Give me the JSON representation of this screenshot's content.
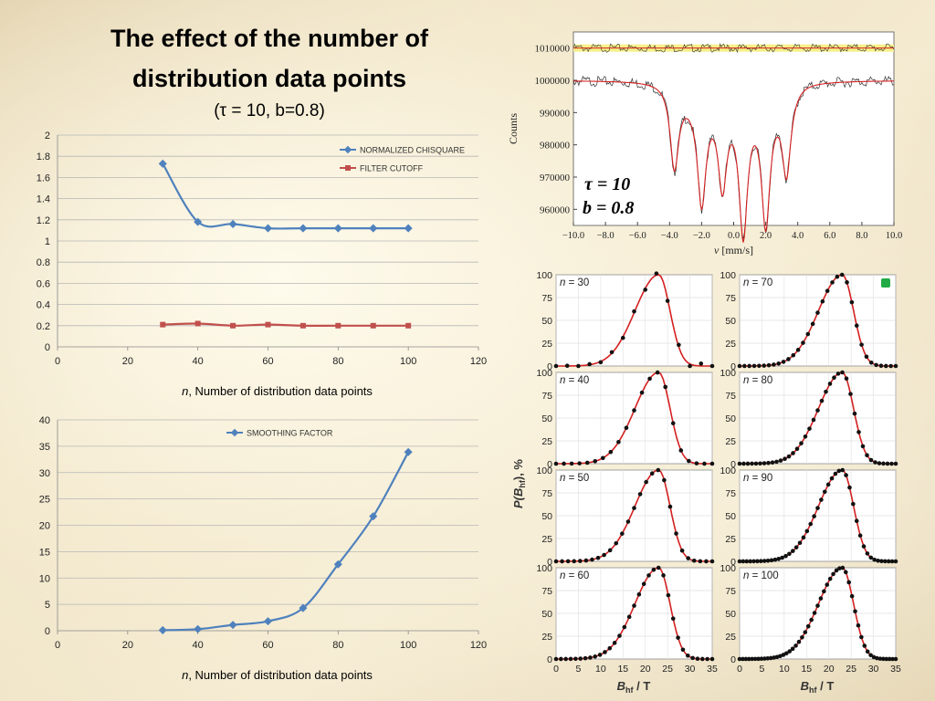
{
  "title_line1": "The effect of the number of",
  "title_line2": "distribution data points",
  "params": "(τ = 10, b=0.8)",
  "chart_data": [
    {
      "type": "line",
      "series": [
        {
          "name": "NORMALIZED CHISQUARE",
          "x": [
            30,
            40,
            50,
            60,
            70,
            80,
            90,
            100
          ],
          "y": [
            1.73,
            1.18,
            1.16,
            1.12,
            1.12,
            1.12,
            1.12,
            1.12
          ],
          "color": "#4f81bd"
        },
        {
          "name": "FILTER CUTOFF",
          "x": [
            30,
            40,
            50,
            60,
            70,
            80,
            90,
            100
          ],
          "y": [
            0.21,
            0.22,
            0.2,
            0.21,
            0.2,
            0.2,
            0.2,
            0.2
          ],
          "color": "#c0504d"
        }
      ],
      "xlabel": "n, Number of distribution data points",
      "xlabel_n": "n",
      "xlabel_rest": ", Number of distribution data points",
      "xlim": [
        0,
        120
      ],
      "ylim": [
        0,
        2
      ],
      "xticks": [
        "0",
        "20",
        "40",
        "60",
        "80",
        "100",
        "120"
      ],
      "yticks": [
        "0",
        "0.2",
        "0.4",
        "0.6",
        "0.8",
        "1",
        "1.2",
        "1.4",
        "1.6",
        "1.8",
        "2"
      ],
      "grid": true,
      "legend": "top-right"
    },
    {
      "type": "line",
      "series": [
        {
          "name": "SMOOTHING FACTOR",
          "x": [
            30,
            40,
            50,
            60,
            70,
            80,
            90,
            100
          ],
          "y": [
            0.1,
            0.3,
            1.1,
            1.8,
            4.3,
            12.6,
            21.7,
            33.9
          ],
          "color": "#4f81bd"
        }
      ],
      "xlabel": "n, Number of distribution data points",
      "xlabel_n": "n",
      "xlabel_rest": ", Number of distribution data points",
      "xlim": [
        0,
        120
      ],
      "ylim": [
        0,
        40
      ],
      "xticks": [
        "0",
        "20",
        "40",
        "60",
        "80",
        "100",
        "120"
      ],
      "yticks": [
        "0",
        "5",
        "10",
        "15",
        "20",
        "25",
        "30",
        "35",
        "40"
      ],
      "grid": true,
      "legend": "top"
    },
    {
      "type": "scatter",
      "ylabel": "Counts",
      "xlabel_sym": "v",
      "xlabel_unit": " [mm/s]",
      "xlim": [
        -10,
        10
      ],
      "ylim": [
        955000,
        1015000
      ],
      "xticks": [
        "−10.0",
        "−8.0",
        "−6.0",
        "−4.0",
        "−2.0",
        "0.0",
        "2.0",
        "4.0",
        "6.0",
        "8.0",
        "10.0"
      ],
      "yticks": [
        "960000",
        "970000",
        "980000",
        "990000",
        "1000000",
        "1010000"
      ],
      "baseline_upper": 1010000,
      "baseline_lower": 1000000,
      "minima": [
        {
          "v": -3.7,
          "counts": 975000
        },
        {
          "v": -2.0,
          "counts": 968000
        },
        {
          "v": -0.7,
          "counts": 974000
        },
        {
          "v": 0.6,
          "counts": 959000
        },
        {
          "v": 2.0,
          "counts": 962000
        },
        {
          "v": 3.3,
          "counts": 975000
        }
      ],
      "annotation_tau": "τ = 10",
      "annotation_b": "b = 0.8"
    },
    {
      "type": "scatter",
      "ylabel": "P(Bhf), %",
      "ylabel_main": "P(B",
      "ylabel_sub": "hf",
      "ylabel_tail": "), %",
      "xlabel_main": "B",
      "xlabel_sub": "hf",
      "xlabel_tail": " / T",
      "xlim": [
        0,
        35
      ],
      "ylim": [
        0,
        100
      ],
      "xticks": [
        "0",
        "5",
        "10",
        "15",
        "20",
        "25",
        "30",
        "35"
      ],
      "yticks": [
        "0",
        "25",
        "50",
        "75",
        "100"
      ],
      "peak_center": 23,
      "peak_value": 100,
      "panels": [
        {
          "label": "n = 30",
          "n": "n",
          "eq": " = 30"
        },
        {
          "label": "n = 70",
          "n": "n",
          "eq": " = 70"
        },
        {
          "label": "n = 40",
          "n": "n",
          "eq": " = 40"
        },
        {
          "label": "n = 80",
          "n": "n",
          "eq": " = 80"
        },
        {
          "label": "n = 50",
          "n": "n",
          "eq": " = 50"
        },
        {
          "label": "n = 90",
          "n": "n",
          "eq": " = 90"
        },
        {
          "label": "n = 60",
          "n": "n",
          "eq": " = 60"
        },
        {
          "label": "n = 100",
          "n": "n",
          "eq": " = 100"
        }
      ],
      "colors": {
        "fit": "#d42020",
        "points": "#111111",
        "marker": "#22aa44"
      }
    }
  ]
}
